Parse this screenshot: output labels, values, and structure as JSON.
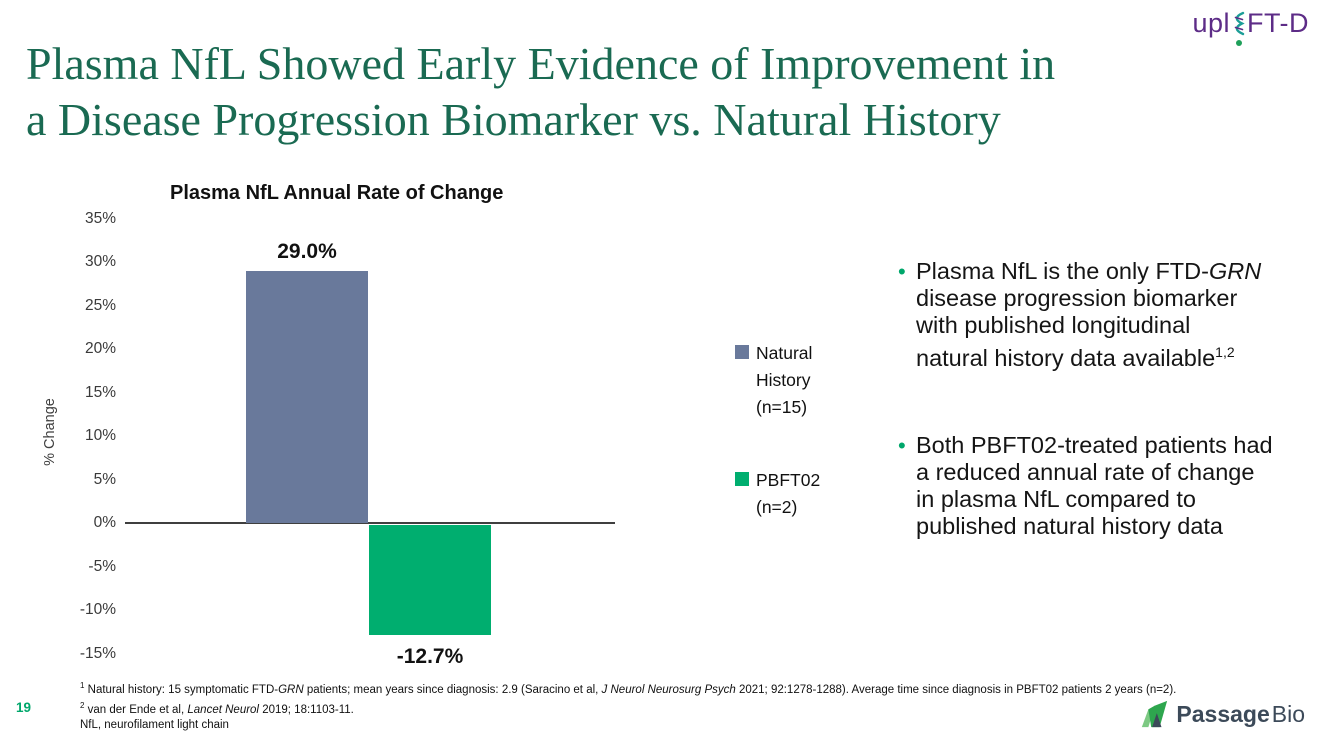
{
  "slide": {
    "page_number": "19",
    "title_line1": "Plasma NfL Showed Early Evidence of Improvement in",
    "title_line2": "a Disease Progression Biomarker vs. Natural History",
    "title_color": "#1a6a52"
  },
  "uplift_logo": {
    "prefix": "upl",
    "suffix": "FT-D",
    "purple": "#5d2c87",
    "teal": "#1c9e97",
    "dot_green": "#1fa05a"
  },
  "passage_logo": {
    "word_bold": "Passage",
    "word_light": "Bio",
    "slate": "#3c4a59",
    "green": "#2ea64e",
    "light_green": "#7dc983"
  },
  "chart_data": {
    "type": "bar",
    "title": "Plasma NfL Annual Rate of Change",
    "ylabel": "% Change",
    "ylim": [
      -15,
      35
    ],
    "ytick_step": 5,
    "ytick_suffix": "%",
    "grid": false,
    "categories": [
      "Natural History (n=15)",
      "PBFT02 (n=2)"
    ],
    "values": [
      29.0,
      -12.7
    ],
    "value_labels": [
      "29.0%",
      "-12.7%"
    ],
    "colors": [
      "#69799b",
      "#00ae6f"
    ],
    "zero_line_color": "#3f3f3f",
    "legend_position": "right",
    "legend": [
      {
        "label": "Natural History (n=15)",
        "color": "#69799b"
      },
      {
        "label": "PBFT02 (n=2)",
        "color": "#00ae6f"
      }
    ]
  },
  "bullets": {
    "marker_color": "#00a76b",
    "item1": {
      "line1_a": "Plasma NfL is the only FTD-",
      "line1_italic": "GRN",
      "line2": "disease progression biomarker",
      "line3": "with published longitudinal",
      "line4_a": "natural history data available",
      "line4_sup": "1,2"
    },
    "item2": {
      "line1": "Both PBFT02-treated patients had",
      "line2": "a reduced annual rate of change",
      "line3": "in plasma NfL compared to",
      "line4": "published natural history data"
    }
  },
  "footnotes": {
    "line1": {
      "sup": "1",
      "part1": " Natural history: 15 symptomatic FTD-",
      "italic1": "GRN",
      "part2": " patients; mean years since diagnosis: 2.9 (Saracino et al, ",
      "italic2": "J Neurol Neurosurg Psych",
      "part3": " 2021; 92:1278-1288). Average time since diagnosis in PBFT02 patients 2 years (n=2)."
    },
    "line2": {
      "sup": "2",
      "part1": " van der Ende et al, ",
      "italic1": "Lancet Neurol",
      "part2": " 2019; 18:1103-11."
    },
    "line3": "NfL, neurofilament light chain"
  }
}
